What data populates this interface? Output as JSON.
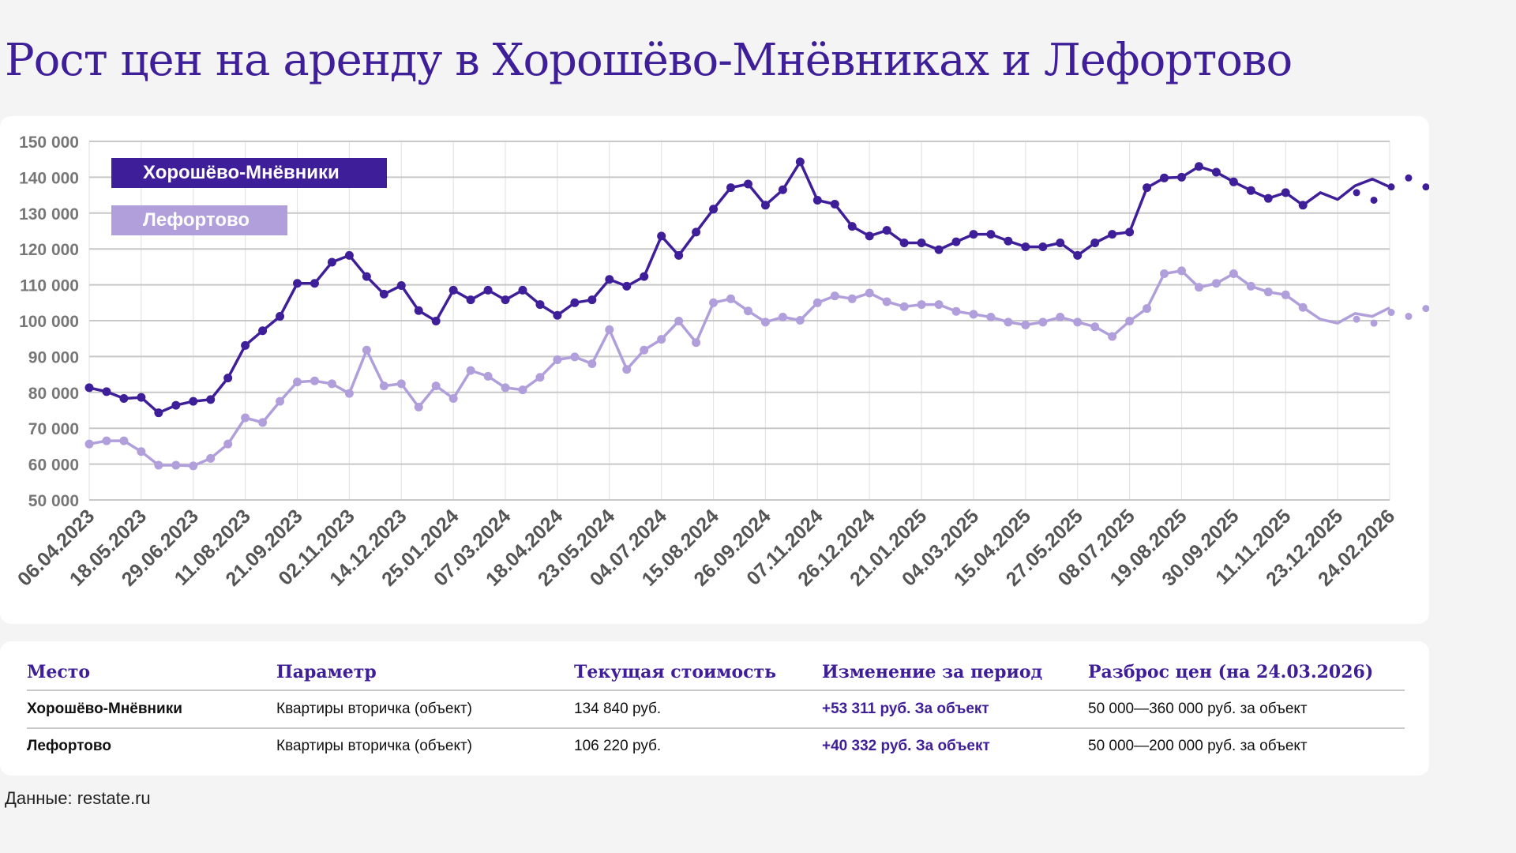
{
  "title": "Рост цен на аренду в Хорошёво-Мнёвниках и Лефортово",
  "colors": {
    "series_a": "#3f1e99",
    "series_b": "#b09fdb",
    "grid": "#c8c8c8",
    "axis_text": "#777777"
  },
  "chart_data": {
    "type": "line",
    "title": "Рост цен на аренду в Хорошёво-Мнёвниках и Лефортово",
    "xlabel": "",
    "ylabel": "",
    "ylim": [
      50000,
      150000
    ],
    "yticks": [
      "50 000",
      "60 000",
      "70 000",
      "80 000",
      "90 000",
      "100 000",
      "110 000",
      "120 000",
      "130 000",
      "140 000",
      "150 000"
    ],
    "x_tick_labels": [
      "06.04.2023",
      "18.05.2023",
      "29.06.2023",
      "11.08.2023",
      "21.09.2023",
      "02.11.2023",
      "14.12.2023",
      "25.01.2024",
      "07.03.2024",
      "18.04.2024",
      "23.05.2024",
      "04.07.2024",
      "15.08.2024",
      "26.09.2024",
      "07.11.2024",
      "26.12.2024",
      "21.01.2025",
      "04.03.2025",
      "15.04.2025",
      "27.05.2025",
      "08.07.2025",
      "19.08.2025",
      "30.09.2025",
      "11.11.2025",
      "23.12.2025",
      "24.02.2026"
    ],
    "grid": true,
    "legend_position": "top-left",
    "series": [
      {
        "name": "Хорошёво-Мнёвники",
        "values": [
          81300,
          80200,
          78300,
          78600,
          74300,
          76400,
          77500,
          78000,
          84000,
          93100,
          97200,
          101200,
          110400,
          110400,
          116300,
          118200,
          112300,
          107400,
          109800,
          102800,
          99900,
          108500,
          105800,
          108500,
          105800,
          108500,
          104500,
          101500,
          105000,
          105800,
          111500,
          109600,
          112300,
          123600,
          118200,
          124700,
          131100,
          137100,
          138100,
          132200,
          136500,
          144300,
          133600,
          132500,
          126300,
          123600,
          125200,
          121700,
          121700,
          119800,
          122000,
          124100,
          124100,
          122200,
          120600,
          120600,
          121700,
          118200,
          121700,
          124100,
          124700,
          137100,
          139800,
          140000,
          143000,
          141400,
          138700,
          136300,
          134100,
          135700,
          132200
        ],
        "tail_values": [
          135700,
          133800,
          137600,
          139500,
          137300
        ],
        "extra_points": [
          135700,
          133600,
          137300,
          139800,
          137300
        ]
      },
      {
        "name": "Лефортово",
        "values": [
          65600,
          66500,
          66500,
          63500,
          59700,
          59700,
          59500,
          61600,
          65600,
          72900,
          71600,
          77500,
          82900,
          83200,
          82400,
          79700,
          91800,
          81800,
          82400,
          75900,
          81800,
          78300,
          86100,
          84500,
          81300,
          80700,
          84200,
          89100,
          89900,
          88000,
          97500,
          86400,
          91800,
          94800,
          99900,
          93900,
          105000,
          106100,
          102700,
          99600,
          101000,
          100100,
          105000,
          106900,
          106100,
          107700,
          105300,
          103900,
          104500,
          104500,
          102600,
          101800,
          101000,
          99600,
          98800,
          99600,
          101000,
          99600,
          98300,
          95600,
          99900,
          103400,
          113100,
          113900,
          109300,
          110400,
          113100,
          109600,
          108000,
          107200,
          103700
        ],
        "tail_values": [
          100400,
          99300,
          102000,
          101200,
          103600
        ],
        "extra_points": [
          100400,
          99300,
          102300,
          101200,
          103400
        ]
      }
    ]
  },
  "table": {
    "headers": [
      "Место",
      "Параметр",
      "Текущая стоимость",
      "Изменение за период",
      "Разброс цен (на 24.03.2026)"
    ],
    "rows": [
      [
        "Хорошёво-Мнёвники",
        "Квартиры вторичка (объект)",
        "134 840 руб.",
        "+53 311 руб. За объект",
        "50 000—360 000 руб. за объект"
      ],
      [
        "Лефортово",
        "Квартиры вторичка (объект)",
        "106 220 руб.",
        "+40 332 руб. За объект",
        "50 000—200 000 руб. за объект"
      ]
    ]
  },
  "source": "Данные: restate.ru"
}
